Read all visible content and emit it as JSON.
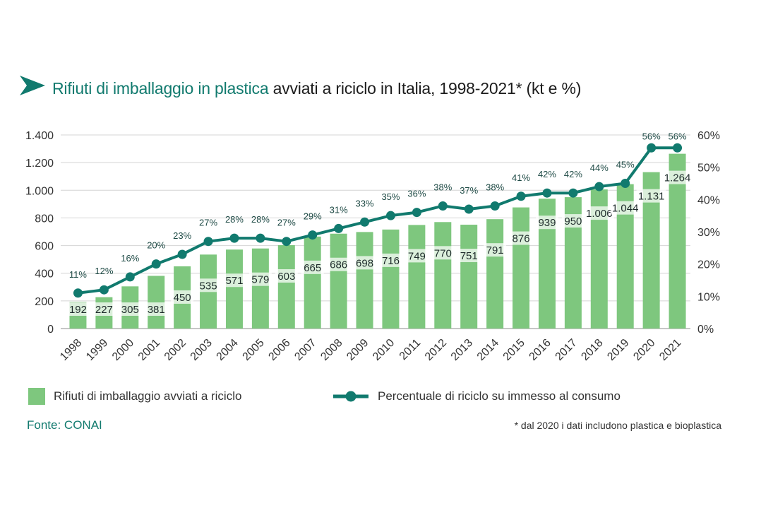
{
  "title": {
    "highlight": "Rifiuti di imballaggio in plastica",
    "rest": " avviati a riciclo in Italia, 1998-2021* (kt e %)"
  },
  "legend": {
    "bars_label": "Rifiuti di imballaggio avviati a riciclo",
    "line_label": "Percentuale di riciclo su immesso al consumo"
  },
  "source": "Fonte: CONAI",
  "note": "* dal 2020 i dati includono plastica e bioplastica",
  "colors": {
    "bar": "#7ec77e",
    "line": "#117a6e",
    "title_accent": "#117a6e"
  },
  "chart_data": {
    "type": "bar",
    "categories": [
      "1998",
      "1999",
      "2000",
      "2001",
      "2002",
      "2003",
      "2004",
      "2005",
      "2006",
      "2007",
      "2008",
      "2009",
      "2010",
      "2011",
      "2012",
      "2013",
      "2014",
      "2015",
      "2016",
      "2017",
      "2018",
      "2019",
      "2020",
      "2021"
    ],
    "series": [
      {
        "type": "bar",
        "axis": "left",
        "values": [
          192,
          227,
          305,
          381,
          450,
          535,
          571,
          579,
          603,
          665,
          686,
          698,
          716,
          749,
          770,
          751,
          791,
          876,
          939,
          950,
          1006,
          1044,
          1131,
          1264
        ],
        "labels": [
          "192",
          "227",
          "305",
          "381",
          "450",
          "535",
          "571",
          "579",
          "603",
          "665",
          "686",
          "698",
          "716",
          "749",
          "770",
          "751",
          "791",
          "876",
          "939",
          "950",
          "1.006",
          "1.044",
          "1.131",
          "1.264"
        ]
      },
      {
        "type": "line",
        "axis": "right",
        "values": [
          11,
          12,
          16,
          20,
          23,
          27,
          28,
          28,
          27,
          29,
          31,
          33,
          35,
          36,
          38,
          37,
          38,
          41,
          42,
          42,
          44,
          45,
          56,
          56
        ],
        "labels": [
          "11%",
          "12%",
          "16%",
          "20%",
          "23%",
          "27%",
          "28%",
          "28%",
          "27%",
          "29%",
          "31%",
          "33%",
          "35%",
          "36%",
          "38%",
          "37%",
          "38%",
          "41%",
          "42%",
          "42%",
          "44%",
          "45%",
          "56%",
          "56%"
        ]
      }
    ],
    "left_axis": {
      "ylim": [
        0,
        1400
      ],
      "ticks": [
        0,
        200,
        400,
        600,
        800,
        1000,
        1200,
        1400
      ],
      "tick_labels": [
        "0",
        "200",
        "400",
        "600",
        "800",
        "1.000",
        "1.200",
        "1.400"
      ]
    },
    "right_axis": {
      "ylim": [
        0,
        60
      ],
      "ticks": [
        0,
        10,
        20,
        30,
        40,
        50,
        60
      ],
      "tick_labels": [
        "0%",
        "10%",
        "20%",
        "30%",
        "40%",
        "50%",
        "60%"
      ]
    },
    "grid": "horizontal",
    "legend_position": "bottom"
  }
}
